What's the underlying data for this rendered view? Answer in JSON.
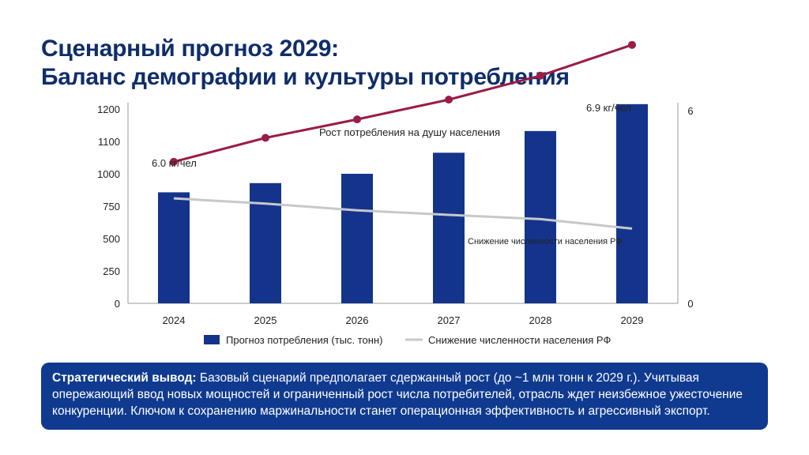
{
  "title": {
    "line1": "Сценарный прогноз 2029:",
    "line2": "Баланс демографии и культуры потребления"
  },
  "chart_data": {
    "type": "bar",
    "categories": [
      "2024",
      "2025",
      "2026",
      "2027",
      "2028",
      "2029"
    ],
    "left_axis": {
      "ticks": [
        "0",
        "250",
        "500",
        "750",
        "1000",
        "1100",
        "1200"
      ]
    },
    "right_axis": {
      "ticks": [
        "0",
        "6"
      ]
    },
    "series": [
      {
        "name": "Прогноз потребления (тыс. тонн)",
        "kind": "bar",
        "color": "#14348c",
        "values": [
          857,
          928,
          1000,
          1065,
          1132,
          1215
        ]
      },
      {
        "name": "Снижение численности населения РФ",
        "kind": "line",
        "color": "#c8c8cc",
        "values": [
          810,
          770,
          718,
          683,
          650,
          577
        ]
      },
      {
        "name": "Рост потребления на душу населения",
        "kind": "line-markers",
        "color": "#9b1c45",
        "values": [
          1037,
          1111,
          1168,
          1229,
          1303,
          1398
        ]
      }
    ],
    "annotations": {
      "start_value": "6.0 кг/чел",
      "end_value": "6.9 кг/чел",
      "per_capita_label": "Рост потребления на душу населения",
      "population_label": "Снижение численности населения РФ"
    },
    "legend": {
      "position": "bottom",
      "items": [
        "Прогноз потребления (тыс. тонн)",
        "Снижение численности населения РФ"
      ]
    },
    "grid": false
  },
  "conclusion": {
    "label": "Стратегический вывод:",
    "text": " Базовый сценарий предполагает сдержанный рост (до ~1 млн тонн к 2029 г.). Учитывая опережающий ввод новых мощностей и ограниченный рост числа потребителей, отрасль ждет неизбежное ужесточение конкуренции. Ключом к сохранению маржинальности станет операционная эффективность и агрессивный экспорт."
  }
}
